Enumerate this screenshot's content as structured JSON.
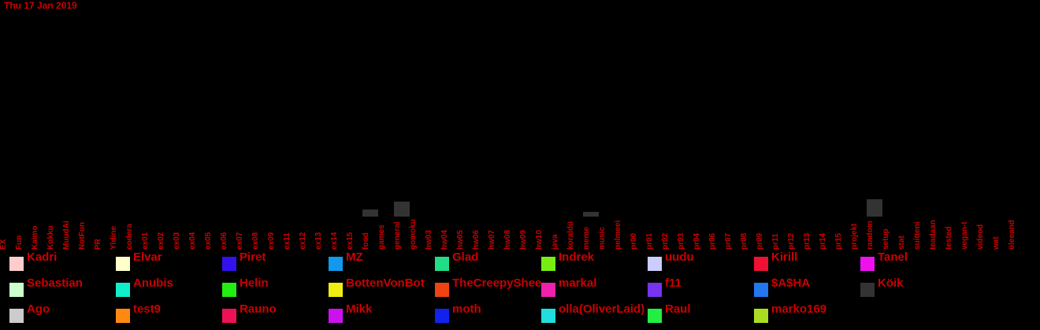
{
  "date": "Thu 17 Jan 2019",
  "chart_data": {
    "type": "bar",
    "categories": [
      "EX",
      "Fun",
      "Kaimo",
      "Kokku",
      "MuudAi",
      "NotFun",
      "PR",
      "Yldine",
      "codera",
      "ex01",
      "ex02",
      "ex03",
      "ex04",
      "ex05",
      "ex06",
      "ex07",
      "ex08",
      "ex09",
      "ex11",
      "ex12",
      "ex13",
      "ex14",
      "ex15",
      "food",
      "games",
      "general",
      "gomoku",
      "hw03",
      "hw04",
      "hw05",
      "hw06",
      "hw07",
      "hw08",
      "hw09",
      "hw10",
      "java",
      "koraldü",
      "meme",
      "music",
      "pelmeei",
      "pr00",
      "pr01",
      "pr02",
      "pr03",
      "pr04",
      "pr06",
      "pr07",
      "pr08",
      "pr09",
      "pr11",
      "pr12",
      "pr13",
      "pr14",
      "pr15",
      "projekt",
      "random",
      "setup",
      "stat",
      "suitteni",
      "teadaan",
      "tested",
      "vegan-t",
      "videod",
      "wat",
      "üleeand"
    ],
    "series": [
      {
        "name": "Köik",
        "color": "#333333",
        "values": [
          0,
          0,
          0,
          0,
          0,
          0,
          0,
          0,
          0,
          0,
          0,
          0,
          0,
          0,
          0,
          0,
          0,
          0,
          0,
          0,
          0,
          0,
          0,
          3,
          0,
          6,
          0,
          0,
          0,
          0,
          0,
          0,
          0,
          0,
          0,
          0,
          0,
          2,
          0,
          0,
          0,
          0,
          0,
          0,
          0,
          0,
          0,
          0,
          0,
          0,
          0,
          0,
          0,
          0,
          0,
          7,
          0,
          0,
          0,
          0,
          0,
          0,
          0,
          0,
          0
        ]
      }
    ],
    "ylim": [
      0,
      82
    ],
    "legend": [
      {
        "name": "Kadri",
        "color": "#ffcccc"
      },
      {
        "name": "Elvar",
        "color": "#ffffcc"
      },
      {
        "name": "Piret",
        "color": "#3311ee"
      },
      {
        "name": "MZ",
        "color": "#1199ee"
      },
      {
        "name": "Glad",
        "color": "#22dd88"
      },
      {
        "name": "Indrek",
        "color": "#77ee11"
      },
      {
        "name": "uudu",
        "color": "#ccccff"
      },
      {
        "name": "Kirill",
        "color": "#ee1133"
      },
      {
        "name": "Tanel",
        "color": "#ee11ee"
      },
      {
        "name": "Sebastian",
        "color": "#ccffcc"
      },
      {
        "name": "Anubis",
        "color": "#11eecc"
      },
      {
        "name": "Helin",
        "color": "#22ee11"
      },
      {
        "name": "BottenVonBot",
        "color": "#eeee11"
      },
      {
        "name": "TheCreepySheep",
        "color": "#ee4411"
      },
      {
        "name": "markal",
        "color": "#ee22aa"
      },
      {
        "name": "f11",
        "color": "#7733ee"
      },
      {
        "name": "$A$HA",
        "color": "#2277ee"
      },
      {
        "name": "Köik",
        "color": "#333333"
      },
      {
        "name": "Ago",
        "color": "#cccccc"
      },
      {
        "name": "test9",
        "color": "#ff8811"
      },
      {
        "name": "Rauno",
        "color": "#ee1155"
      },
      {
        "name": "Mikk",
        "color": "#cc11ee"
      },
      {
        "name": "moth",
        "color": "#1122ee"
      },
      {
        "name": "olla(OliverLaid)",
        "color": "#22dddd"
      },
      {
        "name": "Raul",
        "color": "#22ee44"
      },
      {
        "name": "marko169",
        "color": "#aadd22"
      }
    ]
  }
}
